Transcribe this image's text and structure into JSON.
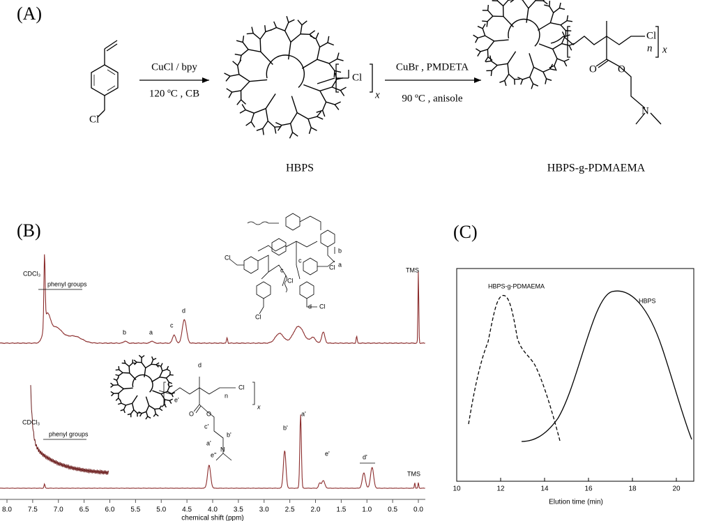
{
  "panel_a": {
    "label": "(A)",
    "monomer_cl": "Cl",
    "reagents_1": [
      "CuCl / bpy",
      "120 ºC , CB"
    ],
    "hbps_cl": "Cl",
    "hbps_x": "x",
    "reagents_2": [
      "CuBr , PMDETA",
      "90 ºC , anisole"
    ],
    "product_cl": "Cl",
    "product_n": "n",
    "product_x": "x",
    "product_o": [
      "O",
      "O"
    ],
    "product_n_atom": "N",
    "names": [
      "HBPS",
      "HBPS-g-PDMAEMA"
    ]
  },
  "panel_b": {
    "label": "(B)",
    "top_labels": [
      "CDCl₃",
      "phenyl groups",
      "b",
      "a",
      "c",
      "d",
      "TMS"
    ],
    "top_structure": [
      "Cl",
      "Cl",
      "Cl",
      "Cl",
      "Cl",
      "b",
      "a",
      "c",
      "c",
      "d"
    ],
    "bottom_labels": [
      "CDCl₃",
      "phenyl groups",
      "e''",
      "b'",
      "a'",
      "e'",
      "d'",
      "TMS"
    ],
    "bottom_structure": [
      "e'",
      "d",
      "Cl",
      "n",
      "x",
      "O",
      "O",
      "c'",
      "b'",
      "N",
      "a'"
    ],
    "xticks": [
      {
        "value": 8,
        "label": "8.0"
      },
      {
        "value": 7.5,
        "label": "7.5"
      },
      {
        "value": 7,
        "label": "7.0"
      },
      {
        "value": 6.5,
        "label": "6.5"
      },
      {
        "value": 6,
        "label": "6.0"
      },
      {
        "value": 5.5,
        "label": "5.5"
      },
      {
        "value": 5,
        "label": "5.0"
      },
      {
        "value": 4.5,
        "label": "4.5"
      },
      {
        "value": 4,
        "label": "4.0"
      },
      {
        "value": 3.5,
        "label": "3.5"
      },
      {
        "value": 3,
        "label": "3.0"
      },
      {
        "value": 2.5,
        "label": "2.5"
      },
      {
        "value": 2,
        "label": "2.0"
      },
      {
        "value": 1.5,
        "label": "1.5"
      },
      {
        "value": 1,
        "label": "1.0"
      },
      {
        "value": 0.5,
        "label": "0.5"
      },
      {
        "value": 0,
        "label": "0.0"
      }
    ],
    "xlabel": "chemical shift (ppm)"
  },
  "panel_c": {
    "label": "(C)",
    "xticks": [
      10,
      12,
      14,
      16,
      18,
      20
    ],
    "xlabel": "Elution time (min)",
    "curve_labels": [
      "HBPS-g-PDMAEMA",
      "HBPS"
    ]
  }
}
